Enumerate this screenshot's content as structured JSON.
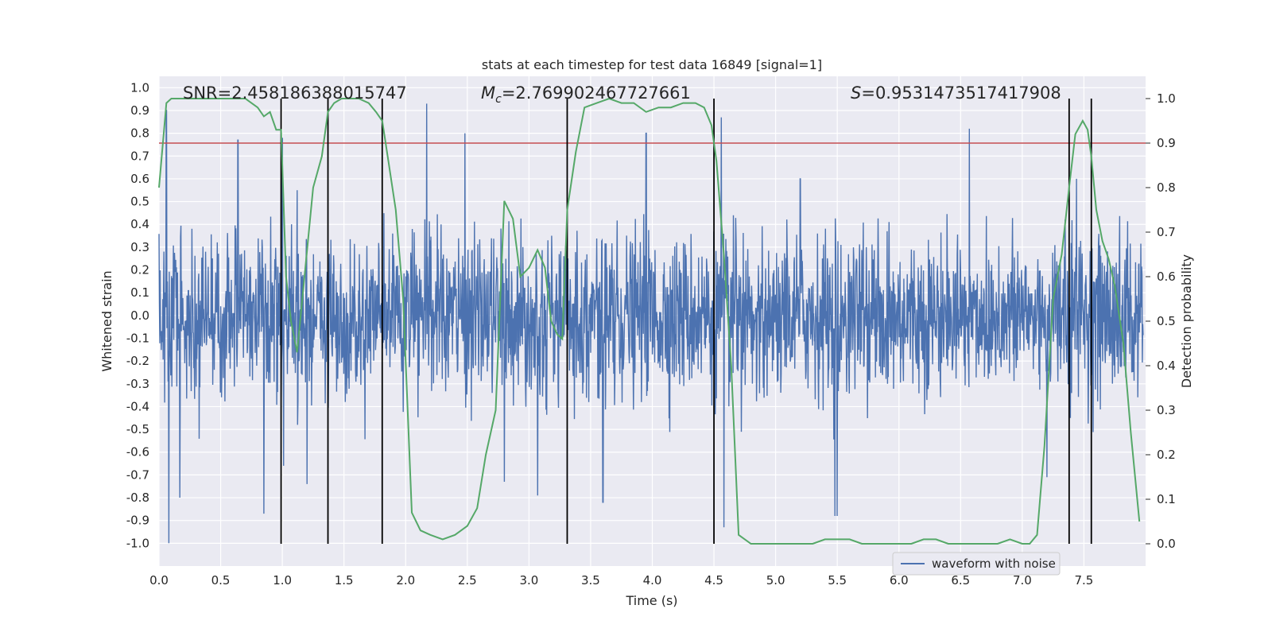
{
  "chart_data": {
    "type": "line",
    "title": "stats at each timestep for test data 16849 [signal=1]",
    "xlabel": "Time (s)",
    "ylabel": "Whitened strain",
    "y2label": "Detection probability",
    "xlim": [
      0.0,
      8.0
    ],
    "ylim": [
      -1.1,
      1.05
    ],
    "y2lim": [
      -0.05,
      1.05
    ],
    "xticks": [
      "0.0",
      "0.5",
      "1.0",
      "1.5",
      "2.0",
      "2.5",
      "3.0",
      "3.5",
      "4.0",
      "4.5",
      "5.0",
      "5.5",
      "6.0",
      "6.5",
      "7.0",
      "7.5"
    ],
    "yticks": [
      "1.0",
      "0.9",
      "0.8",
      "0.7",
      "0.6",
      "0.5",
      "0.4",
      "0.3",
      "0.2",
      "0.1",
      "0.0",
      "-0.1",
      "-0.2",
      "-0.3",
      "-0.4",
      "-0.5",
      "-0.6",
      "-0.7",
      "-0.8",
      "-0.9",
      "-1.0"
    ],
    "y2ticks": [
      "1.0",
      "0.9",
      "0.8",
      "0.7",
      "0.6",
      "0.5",
      "0.4",
      "0.3",
      "0.2",
      "0.1",
      "0.0"
    ],
    "annotations": {
      "snr": "SNR=2.458186388015747",
      "mc_symbol": "M",
      "mc_sub": "c",
      "mc_value": "=2.769902467727661",
      "s_symbol": "S",
      "s_value": "=0.9531473517417908"
    },
    "legend": {
      "label": "waveform with noise",
      "placement": "lower-right"
    },
    "threshold": {
      "value": 0.9,
      "axis": "right",
      "color": "#c44e52"
    },
    "vertical_markers": [
      0.99,
      1.37,
      1.81,
      3.31,
      4.5,
      7.38,
      7.56
    ],
    "series": [
      {
        "name": "waveform with noise",
        "axis": "left",
        "color": "#4c72b0",
        "amplitude_envelope": {
          "typical_max": 0.45,
          "peaks": [
            [
              0.06,
              0.9
            ],
            [
              0.17,
              0.84
            ],
            [
              0.64,
              0.77
            ],
            [
              1.0,
              0.78
            ],
            [
              1.12,
              0.55
            ],
            [
              2.17,
              0.93
            ],
            [
              2.48,
              0.8
            ],
            [
              3.95,
              0.8
            ],
            [
              4.56,
              0.87
            ],
            [
              5.2,
              0.6
            ],
            [
              5.5,
              -0.88
            ],
            [
              6.57,
              0.82
            ],
            [
              7.44,
              0.6
            ],
            [
              0.08,
              -1.0
            ],
            [
              0.17,
              -0.8
            ],
            [
              0.85,
              -0.87
            ],
            [
              1.01,
              -0.66
            ],
            [
              2.8,
              -0.73
            ],
            [
              3.07,
              -0.79
            ],
            [
              4.58,
              -0.93
            ],
            [
              5.48,
              -0.88
            ],
            [
              1.2,
              -0.74
            ],
            [
              3.6,
              -0.82
            ],
            [
              7.2,
              -0.71
            ]
          ]
        }
      },
      {
        "name": "detection probability",
        "axis": "right",
        "color": "#55a868",
        "x": [
          0.0,
          0.06,
          0.1,
          0.2,
          0.3,
          0.4,
          0.5,
          0.6,
          0.7,
          0.75,
          0.8,
          0.85,
          0.9,
          0.95,
          0.99,
          1.03,
          1.07,
          1.12,
          1.18,
          1.25,
          1.32,
          1.37,
          1.42,
          1.48,
          1.55,
          1.62,
          1.7,
          1.76,
          1.81,
          1.86,
          1.92,
          1.98,
          2.05,
          2.12,
          2.2,
          2.3,
          2.4,
          2.5,
          2.58,
          2.65,
          2.73,
          2.8,
          2.87,
          2.93,
          3.0,
          3.07,
          3.13,
          3.18,
          3.23,
          3.27,
          3.31,
          3.38,
          3.45,
          3.55,
          3.65,
          3.75,
          3.85,
          3.95,
          4.05,
          4.15,
          4.25,
          4.35,
          4.42,
          4.48,
          4.52,
          4.58,
          4.64,
          4.7,
          4.8,
          4.9,
          5.0,
          5.1,
          5.2,
          5.3,
          5.4,
          5.45,
          5.5,
          5.6,
          5.7,
          5.8,
          5.9,
          6.0,
          6.1,
          6.2,
          6.25,
          6.3,
          6.4,
          6.5,
          6.6,
          6.7,
          6.8,
          6.9,
          7.0,
          7.06,
          7.12,
          7.18,
          7.25,
          7.32,
          7.38,
          7.43,
          7.49,
          7.53,
          7.56,
          7.6,
          7.65,
          7.7,
          7.75,
          7.82,
          7.88,
          7.95
        ],
        "y": [
          0.8,
          0.99,
          1.0,
          1.0,
          1.0,
          1.0,
          1.0,
          1.0,
          1.0,
          0.99,
          0.98,
          0.96,
          0.97,
          0.93,
          0.93,
          0.6,
          0.5,
          0.43,
          0.6,
          0.8,
          0.87,
          0.97,
          0.99,
          1.0,
          1.0,
          1.0,
          0.99,
          0.97,
          0.95,
          0.86,
          0.75,
          0.55,
          0.07,
          0.03,
          0.02,
          0.01,
          0.02,
          0.04,
          0.08,
          0.2,
          0.3,
          0.77,
          0.73,
          0.6,
          0.62,
          0.66,
          0.62,
          0.5,
          0.47,
          0.46,
          0.75,
          0.88,
          0.98,
          0.99,
          1.0,
          0.99,
          0.99,
          0.97,
          0.98,
          0.98,
          0.99,
          0.99,
          0.98,
          0.94,
          0.86,
          0.65,
          0.4,
          0.02,
          0.0,
          0.0,
          0.0,
          0.0,
          0.0,
          0.0,
          0.01,
          0.01,
          0.01,
          0.01,
          0.0,
          0.0,
          0.0,
          0.0,
          0.0,
          0.01,
          0.01,
          0.01,
          0.0,
          0.0,
          0.0,
          0.0,
          0.0,
          0.01,
          0.0,
          0.0,
          0.02,
          0.22,
          0.55,
          0.65,
          0.8,
          0.92,
          0.95,
          0.93,
          0.87,
          0.75,
          0.68,
          0.64,
          0.58,
          0.45,
          0.25,
          0.05
        ]
      }
    ]
  }
}
